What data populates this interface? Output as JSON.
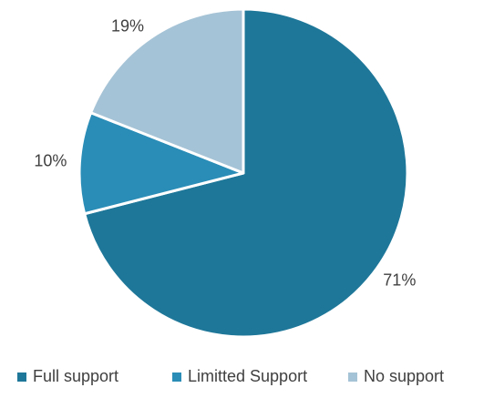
{
  "chart_data": {
    "type": "pie",
    "title": "",
    "labels": [
      "Full support",
      "Limitted Support",
      "No support"
    ],
    "values": [
      71,
      10,
      19
    ],
    "value_labels": [
      "71%",
      "10%",
      "19%"
    ],
    "colors": [
      "#1e7799",
      "#2a8db7",
      "#a5c3d6"
    ],
    "start_angle_deg": 0,
    "direction": "clockwise",
    "legend_position": "bottom"
  }
}
